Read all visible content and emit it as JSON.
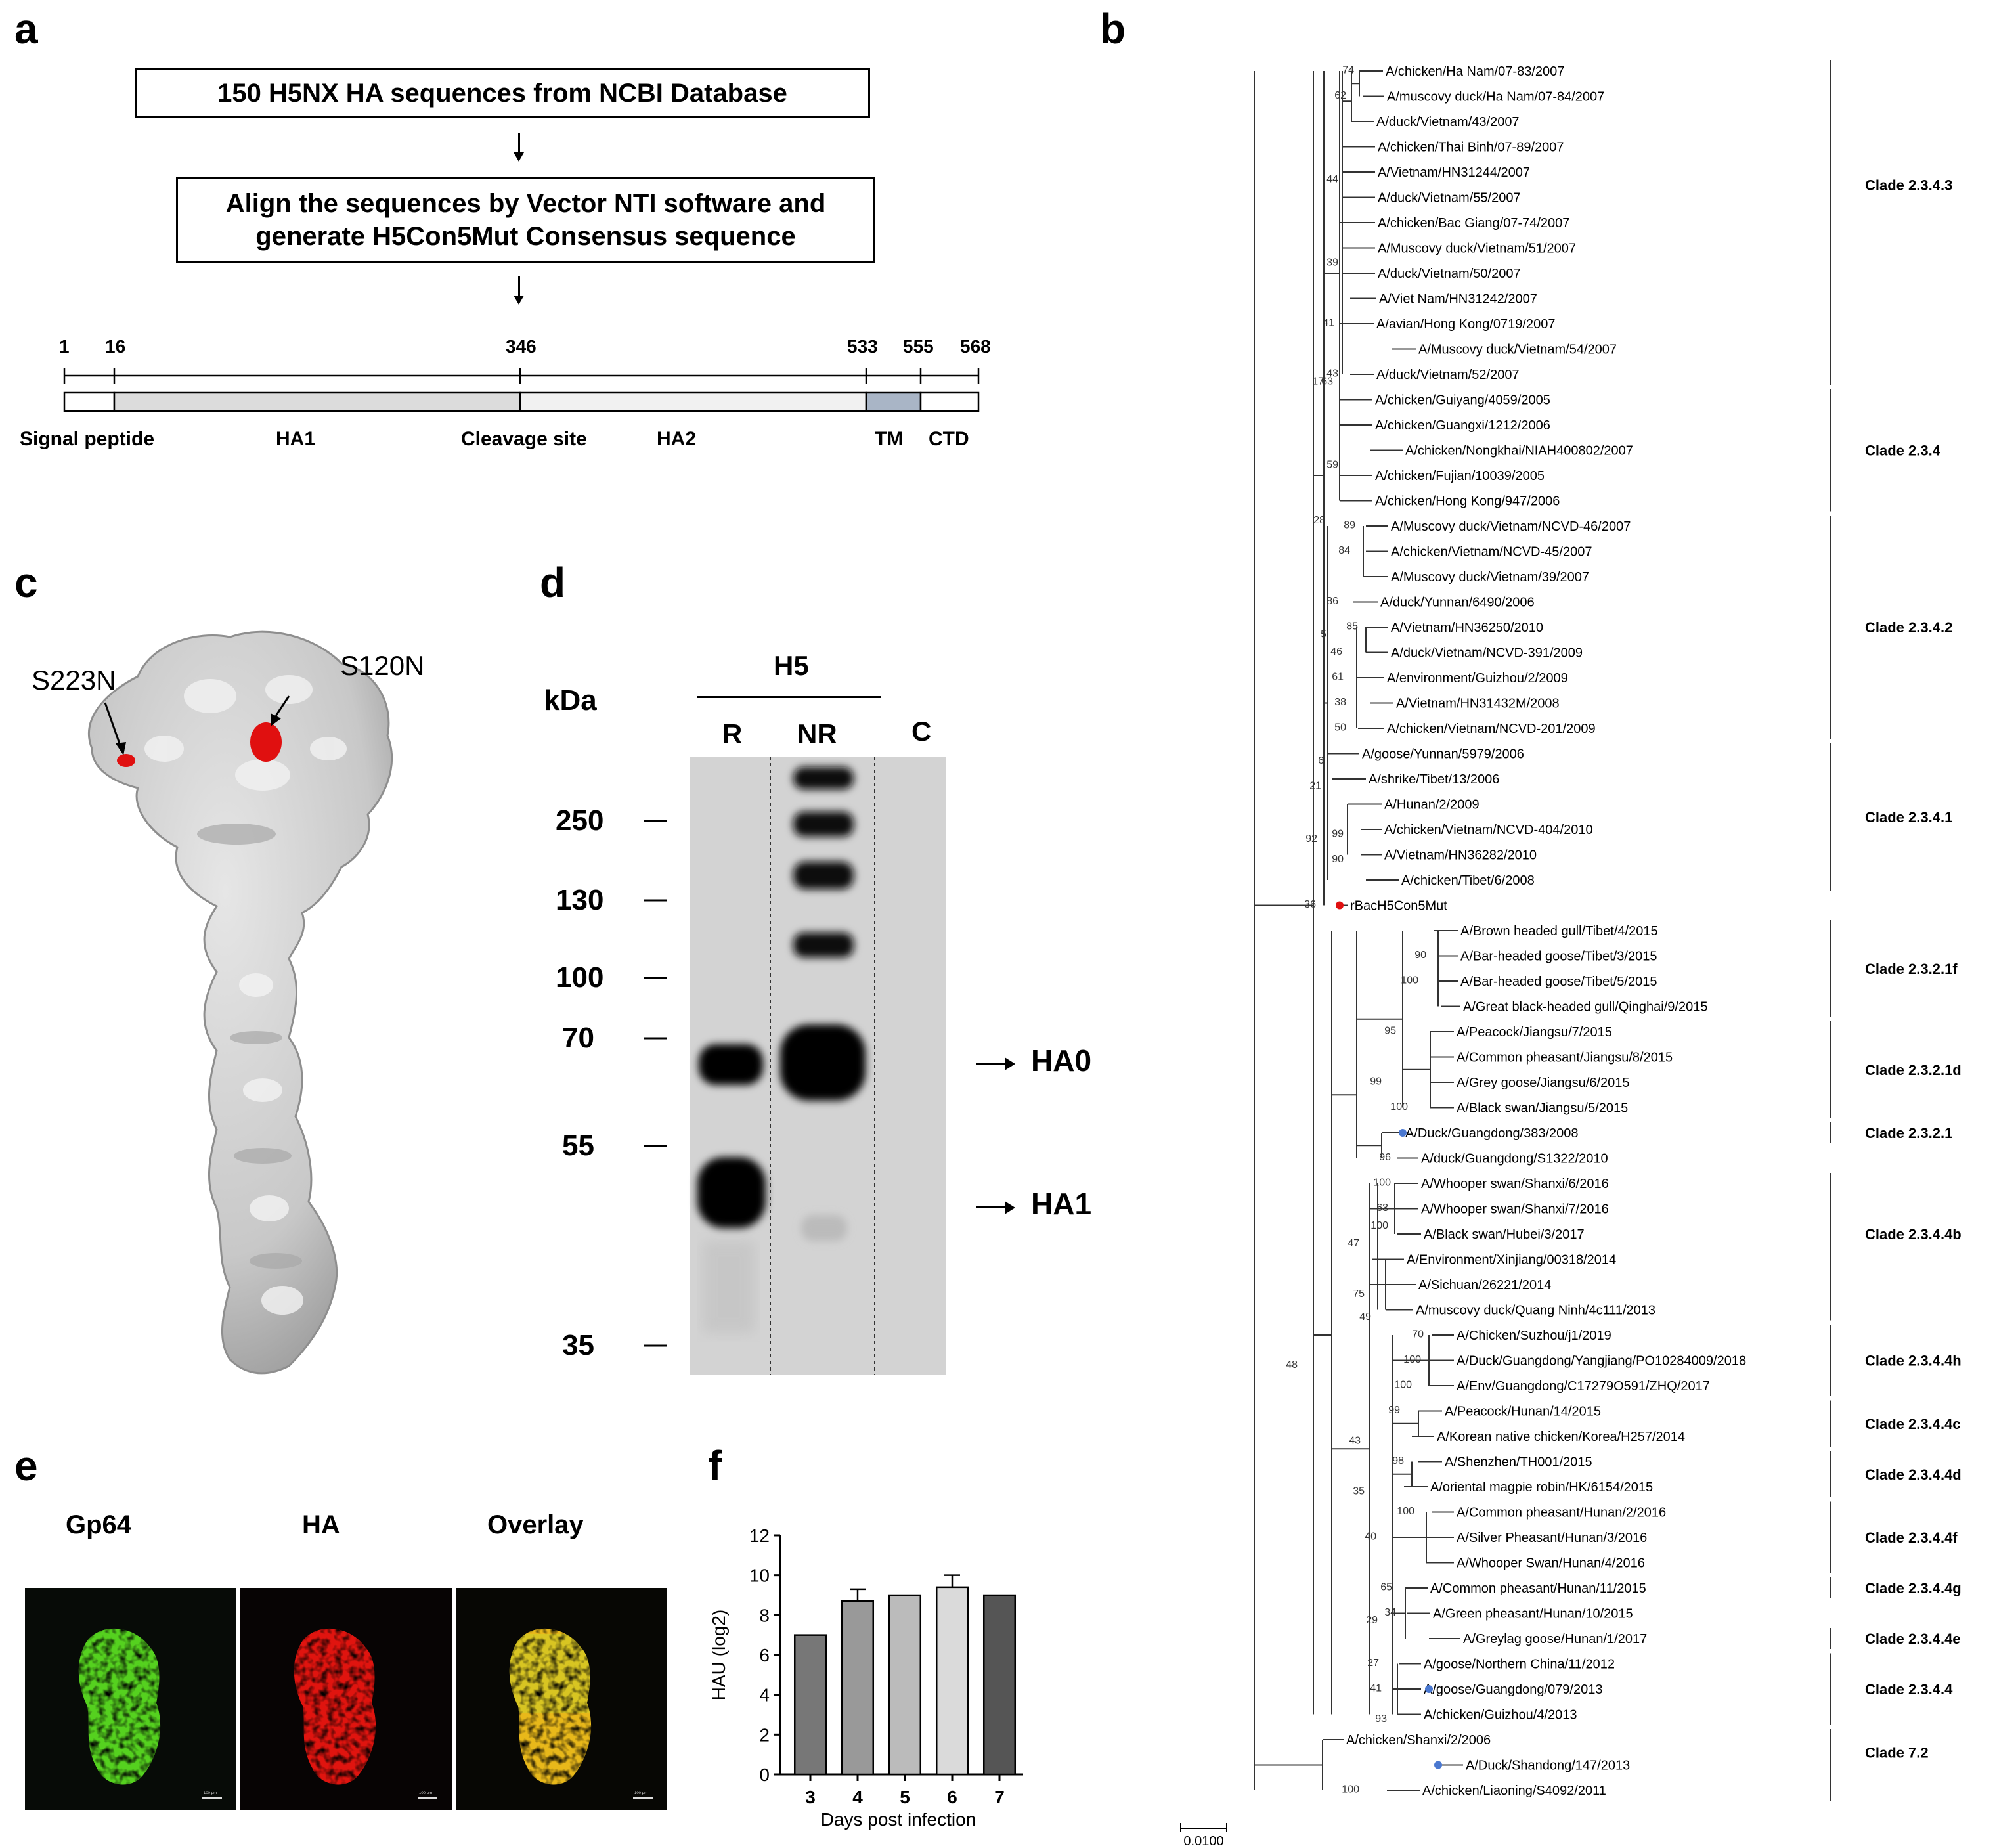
{
  "panels": {
    "a": "a",
    "b": "b",
    "c": "c",
    "d": "d",
    "e": "e",
    "f": "f"
  },
  "panel_a": {
    "box1": "150 H5NX HA sequences from NCBI Database",
    "box2_line1": "Align the sequences by Vector NTI software and",
    "box2_line2": "generate H5Con5Mut Consensus sequence",
    "positions": [
      "1",
      "16",
      "346",
      "533",
      "555",
      "568"
    ],
    "domains": [
      "Signal peptide",
      "HA1",
      "Cleavage site",
      "HA2",
      "TM",
      "CTD"
    ],
    "colors": {
      "ha1": "#dcdcdc",
      "ha2": "#f1f1f1",
      "tm": "#a9b5c6"
    }
  },
  "panel_c": {
    "mutations": [
      "S223N",
      "S120N"
    ],
    "colors": {
      "surface": "#d2d2d2",
      "mutation": "#e01010"
    }
  },
  "panel_d": {
    "kda": "kDa",
    "group": "H5",
    "lanes": [
      "R",
      "NR",
      "C"
    ],
    "markers": [
      "250",
      "130",
      "100",
      "70",
      "55",
      "35"
    ],
    "bands": [
      "HA0",
      "HA1"
    ]
  },
  "panel_e": {
    "channels": [
      "Gp64",
      "HA",
      "Overlay"
    ],
    "scale_bar": "100 μm",
    "colors": {
      "gp64": "#55d11f",
      "ha": "#e0140f",
      "overlay": "#e8b81a"
    }
  },
  "panel_f": {
    "chart_data": {
      "type": "bar",
      "categories": [
        "3",
        "4",
        "5",
        "6",
        "7"
      ],
      "values": [
        7.0,
        8.7,
        9.0,
        9.4,
        9.0
      ],
      "errors": [
        0,
        0.6,
        0,
        0.6,
        0
      ],
      "xlabel": "Days post infection",
      "ylabel": "HAU (log2)",
      "ylim": [
        0,
        12
      ],
      "yticks": [
        "0",
        "2",
        "4",
        "6",
        "8",
        "10",
        "12"
      ],
      "bar_colors": [
        "#777777",
        "#999999",
        "#bbbbbb",
        "#dadada",
        "#555555"
      ]
    }
  },
  "panel_b": {
    "scale": "0.0100",
    "highlight_colors": {
      "consensus": "#e01010",
      "reference": "#4a78d0"
    },
    "taxa": [
      "A/chicken/Ha Nam/07-83/2007",
      "A/muscovy duck/Ha Nam/07-84/2007",
      "A/duck/Vietnam/43/2007",
      "A/chicken/Thai Binh/07-89/2007",
      "A/Vietnam/HN31244/2007",
      "A/duck/Vietnam/55/2007",
      "A/chicken/Bac Giang/07-74/2007",
      "A/Muscovy duck/Vietnam/51/2007",
      "A/duck/Vietnam/50/2007",
      "A/Viet Nam/HN31242/2007",
      "A/avian/Hong Kong/0719/2007",
      "A/Muscovy duck/Vietnam/54/2007",
      "A/duck/Vietnam/52/2007",
      "A/chicken/Guiyang/4059/2005",
      "A/chicken/Guangxi/1212/2006",
      "A/chicken/Nongkhai/NIAH400802/2007",
      "A/chicken/Fujian/10039/2005",
      "A/chicken/Hong Kong/947/2006",
      "A/Muscovy duck/Vietnam/NCVD-46/2007",
      "A/chicken/Vietnam/NCVD-45/2007",
      "A/Muscovy duck/Vietnam/39/2007",
      "A/duck/Yunnan/6490/2006",
      "A/Vietnam/HN36250/2010",
      "A/duck/Vietnam/NCVD-391/2009",
      "A/environment/Guizhou/2/2009",
      "A/Vietnam/HN31432M/2008",
      "A/chicken/Vietnam/NCVD-201/2009",
      "A/goose/Yunnan/5979/2006",
      "A/shrike/Tibet/13/2006",
      "A/Hunan/2/2009",
      "A/chicken/Vietnam/NCVD-404/2010",
      "A/Vietnam/HN36282/2010",
      "A/chicken/Tibet/6/2008",
      "rBacH5Con5Mut",
      "A/Brown headed gull/Tibet/4/2015",
      "A/Bar-headed goose/Tibet/3/2015",
      "A/Bar-headed goose/Tibet/5/2015",
      "A/Great black-headed gull/Qinghai/9/2015",
      "A/Peacock/Jiangsu/7/2015",
      "A/Common pheasant/Jiangsu/8/2015",
      "A/Grey goose/Jiangsu/6/2015",
      "A/Black swan/Jiangsu/5/2015",
      "A/Duck/Guangdong/383/2008",
      "A/duck/Guangdong/S1322/2010",
      "A/Whooper swan/Shanxi/6/2016",
      "A/Whooper swan/Shanxi/7/2016",
      "A/Black swan/Hubei/3/2017",
      "A/Environment/Xinjiang/00318/2014",
      "A/Sichuan/26221/2014",
      "A/muscovy duck/Quang Ninh/4c111/2013",
      "A/Chicken/Suzhou/j1/2019",
      "A/Duck/Guangdong/Yangjiang/PO10284009/2018",
      "A/Env/Guangdong/C17279O591/ZHQ/2017",
      "A/Peacock/Hunan/14/2015",
      "A/Korean native chicken/Korea/H257/2014",
      "A/Shenzhen/TH001/2015",
      "A/oriental magpie robin/HK/6154/2015",
      "A/Common pheasant/Hunan/2/2016",
      "A/Silver Pheasant/Hunan/3/2016",
      "A/Whooper Swan/Hunan/4/2016",
      "A/Common pheasant/Hunan/11/2015",
      "A/Green pheasant/Hunan/10/2015",
      "A/Greylag goose/Hunan/1/2017",
      "A/goose/Northern China/11/2012",
      "A/goose/Guangdong/079/2013",
      "A/chicken/Guizhou/4/2013",
      "A/chicken/Shanxi/2/2006",
      "A/Duck/Shandong/147/2013",
      "A/chicken/Liaoning/S4092/2011"
    ],
    "clades": [
      "Clade 2.3.4.3",
      "Clade 2.3.4",
      "Clade 2.3.4.2",
      "Clade 2.3.4.1",
      "Clade 2.3.2.1f",
      "Clade 2.3.2.1d",
      "Clade 2.3.2.1",
      "Clade 2.3.4.4b",
      "Clade 2.3.4.4h",
      "Clade 2.3.4.4c",
      "Clade 2.3.4.4d",
      "Clade 2.3.4.4f",
      "Clade 2.3.4.4g",
      "Clade 2.3.4.4e",
      "Clade 2.3.4.4",
      "Clade 7.2"
    ],
    "bootstraps": [
      "74",
      "62",
      "44",
      "39",
      "41",
      "43",
      "17",
      "63",
      "59",
      "28",
      "89",
      "84",
      "86",
      "85",
      "46",
      "61",
      "38",
      "50",
      "5",
      "6",
      "21",
      "92",
      "99",
      "90",
      "36",
      "90",
      "100",
      "95",
      "99",
      "100",
      "96",
      "100",
      "63",
      "100",
      "47",
      "75",
      "49",
      "48",
      "70",
      "100",
      "100",
      "99",
      "43",
      "98",
      "35",
      "100",
      "40",
      "65",
      "34",
      "29",
      "27",
      "41",
      "93",
      "100"
    ]
  }
}
